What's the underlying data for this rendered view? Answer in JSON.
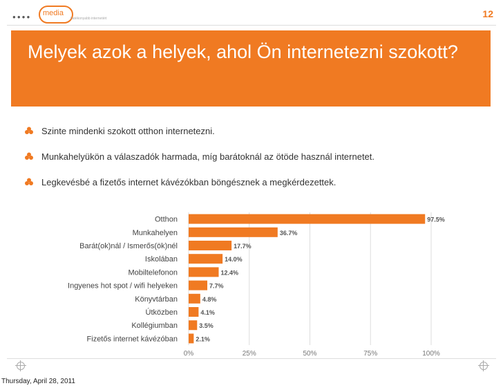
{
  "header": {
    "logo_text": "media",
    "logo_suffix": "a",
    "logo_tagline": "hatékonyabb internetért",
    "page_number": "12"
  },
  "title": "Melyek azok a helyek, ahol Ön internetezni szokott?",
  "bullets": [
    "Szinte mindenki szokott otthon internetezni.",
    "Munkahelyükön a válaszadók harmada, míg barátoknál az ötöde használ internetet.",
    "Legkevésbé a fizetős internet kávézókban böngésznek a megkérdezettek."
  ],
  "footer": {
    "date": "Thursday, April 28, 2011"
  },
  "colors": {
    "accent": "#f07a22",
    "bar": "#f07a22",
    "grid": "#dddddd"
  },
  "icons": {
    "bullet": "clover-bullet-icon",
    "corner": "crosshair-icon"
  },
  "chart_data": {
    "type": "bar",
    "orientation": "horizontal",
    "categories": [
      "Otthon",
      "Munkahelyen",
      "Barát(ok)nál / Ismerős(ök)nél",
      "Iskolában",
      "Mobiltelefonon",
      "Ingyenes hot spot / wifi helyeken",
      "Könyvtárban",
      "Útközben",
      "Kollégiumban",
      "Fizetős internet kávézóban"
    ],
    "values": [
      97.5,
      36.7,
      17.7,
      14.0,
      12.4,
      7.7,
      4.8,
      4.1,
      3.5,
      2.1
    ],
    "value_labels": [
      "97.5%",
      "36.7%",
      "17.7%",
      "14.0%",
      "12.4%",
      "7.7%",
      "4.8%",
      "4.1%",
      "3.5%",
      "2.1%"
    ],
    "xlim": [
      0,
      100
    ],
    "xticks": [
      0,
      25,
      50,
      75,
      100
    ],
    "xtick_labels": [
      "0%",
      "25%",
      "50%",
      "75%",
      "100%"
    ],
    "grid": true
  }
}
